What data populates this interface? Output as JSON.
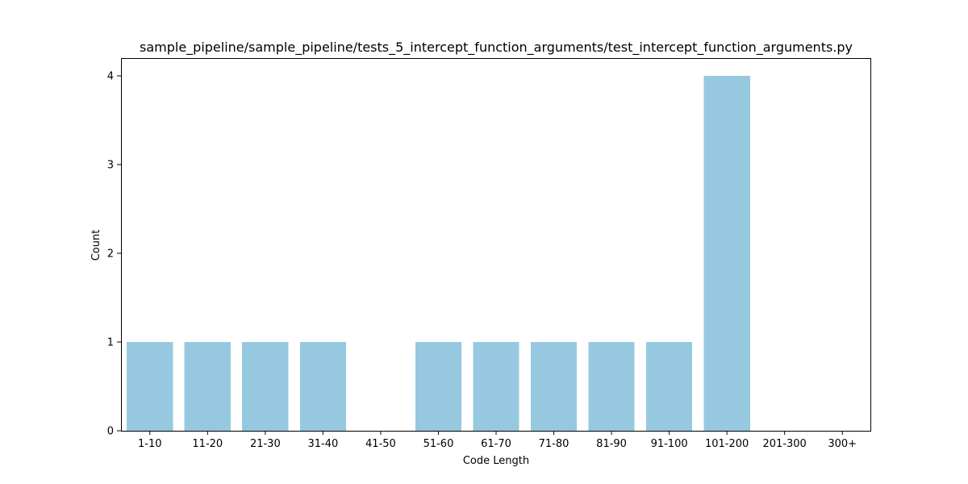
{
  "chart_data": {
    "type": "bar",
    "title": "sample_pipeline/sample_pipeline/tests_5_intercept_function_arguments/test_intercept_function_arguments.py",
    "xlabel": "Code Length",
    "ylabel": "Count",
    "categories": [
      "1-10",
      "11-20",
      "21-30",
      "31-40",
      "41-50",
      "51-60",
      "61-70",
      "71-80",
      "81-90",
      "91-100",
      "101-200",
      "201-300",
      "300+"
    ],
    "values": [
      1,
      1,
      1,
      1,
      0,
      1,
      1,
      1,
      1,
      1,
      4,
      0,
      0
    ],
    "ylim": [
      0,
      4.2
    ],
    "yticks": [
      0,
      1,
      2,
      3,
      4
    ],
    "bar_color": "#96c9df",
    "grid": false,
    "legend": "none"
  }
}
